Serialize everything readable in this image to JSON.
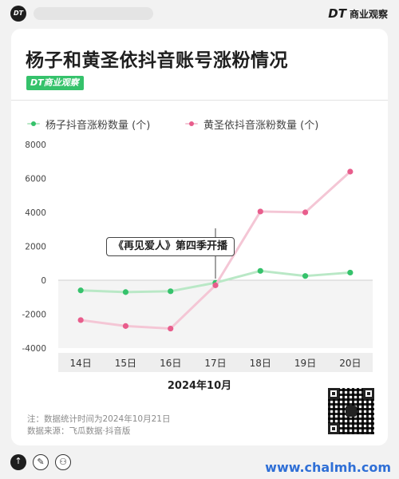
{
  "header": {
    "logo_text": "DT",
    "brand_mark": "DT",
    "brand_name": "商业观察"
  },
  "card": {
    "title": "杨子和黄圣依抖音账号涨粉情况",
    "badge": "DT商业观察",
    "callout": "《再见爱人》第四季开播",
    "note": "注：数据统计时间为2024年10月21日",
    "source": "数据来源：飞瓜数据·抖音版"
  },
  "chart_data": {
    "type": "line",
    "categories": [
      "14日",
      "15日",
      "16日",
      "17日",
      "18日",
      "19日",
      "20日"
    ],
    "xlabel": "2024年10月",
    "ylabel": "",
    "ylim": [
      -4000,
      8000
    ],
    "yticks": [
      "8000",
      "6000",
      "4000",
      "2000",
      "0",
      "-2000",
      "-4000"
    ],
    "grid": false,
    "legend_position": "top-left",
    "annotation": {
      "text": "《再见爱人》第四季开播",
      "category": "17日"
    },
    "series": [
      {
        "name": "杨子抖音涨粉数量 (个)",
        "color": "#35c26b",
        "line_color": "#b9e8c6",
        "values": [
          -600,
          -700,
          -650,
          -150,
          550,
          250,
          450
        ]
      },
      {
        "name": "黄圣依抖音涨粉数量 (个)",
        "color": "#e85d8c",
        "line_color": "#f4c6d5",
        "values": [
          -2350,
          -2700,
          -2850,
          -300,
          4050,
          4000,
          6400
        ]
      }
    ]
  },
  "footer": {
    "up_icon": "↑",
    "pen_icon": "✎",
    "user_icon": "⚇",
    "site": "www.chalmh.com"
  }
}
